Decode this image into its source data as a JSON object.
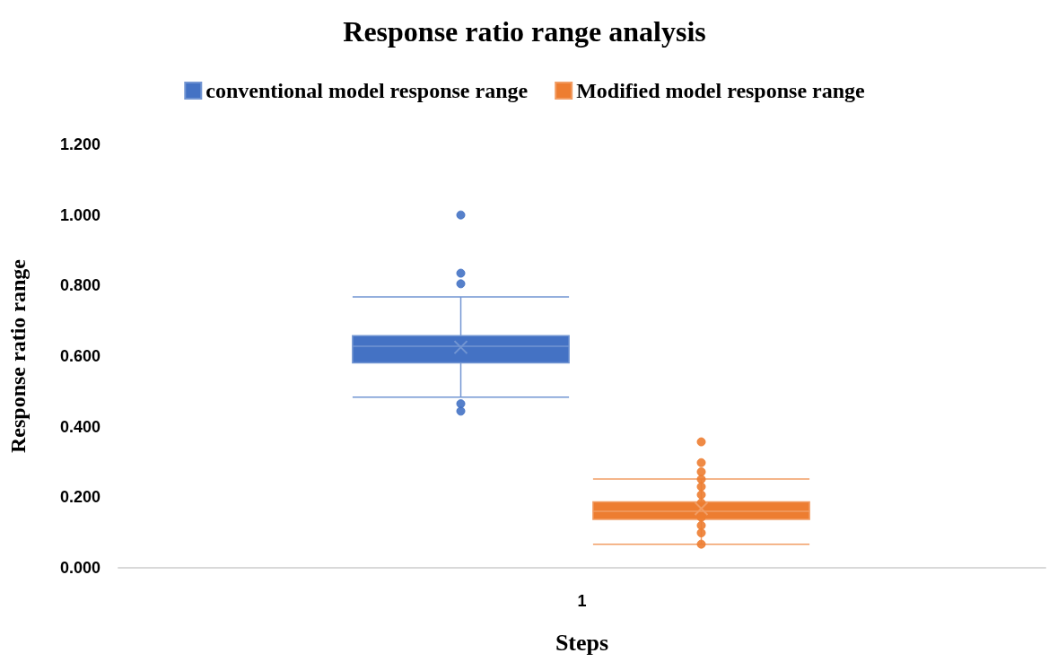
{
  "chart_data": {
    "type": "box",
    "title": "Response ratio range analysis",
    "xlabel": "Steps",
    "ylabel": "Response ratio range",
    "categories": [
      "1"
    ],
    "ylim": [
      0,
      1.2
    ],
    "yticks": [
      {
        "value": 0,
        "label": "0.000"
      },
      {
        "value": 0.2,
        "label": "0.200"
      },
      {
        "value": 0.4,
        "label": "0.400"
      },
      {
        "value": 0.6,
        "label": "0.600"
      },
      {
        "value": 0.8,
        "label": "0.800"
      },
      {
        "value": 1,
        "label": "1.000"
      },
      {
        "value": 1.2,
        "label": "1.200"
      }
    ],
    "grid": false,
    "legend": "top",
    "marker": "circle",
    "series": [
      {
        "name": "conventional model response range",
        "color": "#4472c4",
        "boxes": [
          {
            "low": 0.484,
            "q1": 0.581,
            "median": 0.628,
            "q3": 0.658,
            "high": 0.768,
            "mean": 0.625,
            "outliers": [
              1.0,
              0.835,
              0.805,
              0.465,
              0.444
            ]
          }
        ]
      },
      {
        "name": "Modified model response range",
        "color": "#ed7d31",
        "boxes": [
          {
            "low": 0.067,
            "q1": 0.137,
            "median": 0.16,
            "q3": 0.187,
            "high": 0.252,
            "mean": 0.168,
            "outliers": [
              0.357,
              0.298,
              0.272,
              0.251,
              0.23,
              0.207,
              0.184,
              0.143,
              0.12,
              0.099,
              0.067
            ]
          }
        ]
      }
    ]
  }
}
